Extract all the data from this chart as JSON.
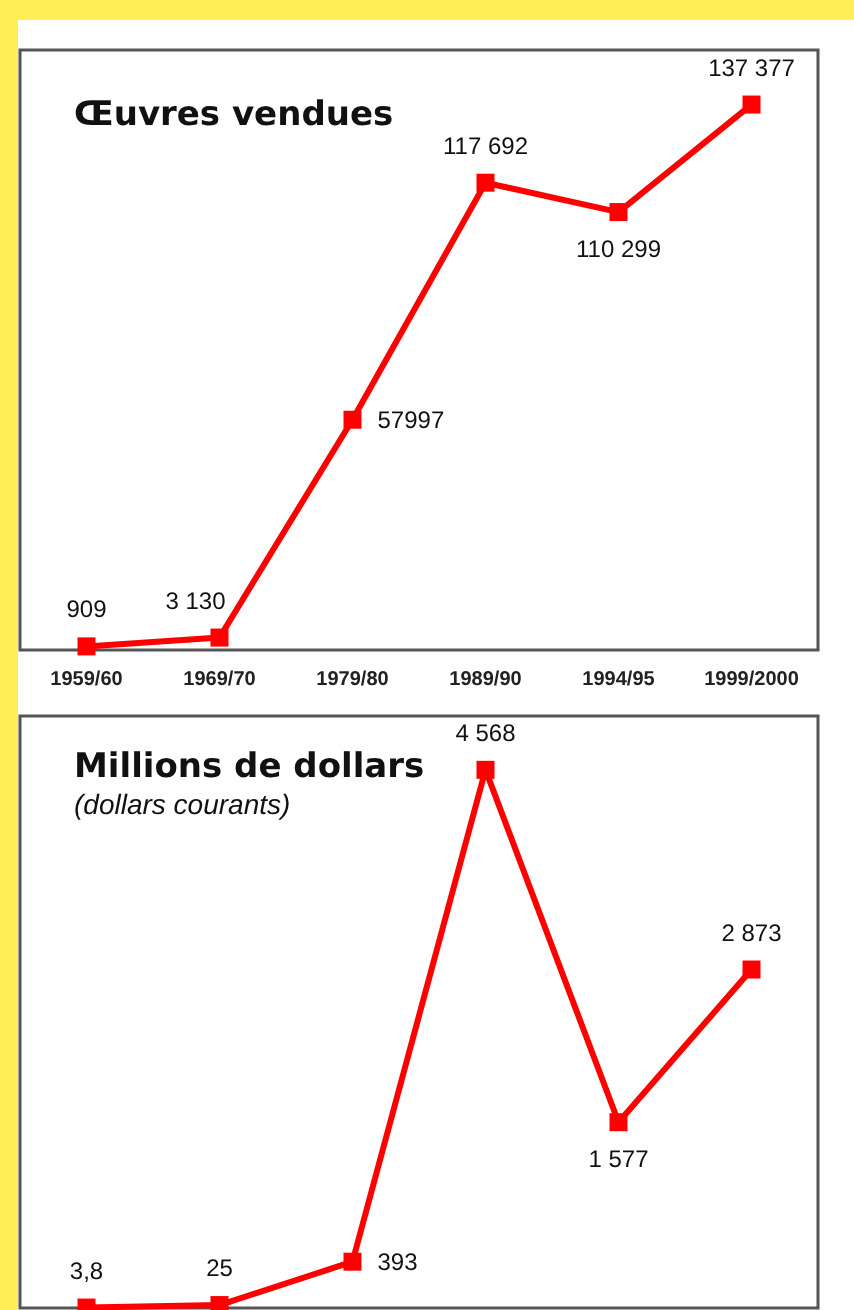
{
  "chart_data": [
    {
      "type": "line",
      "title": "Œuvres vendues",
      "categories": [
        "1959/60",
        "1969/70",
        "1979/80",
        "1989/90",
        "1994/95",
        "1999/2000"
      ],
      "series": [
        {
          "color": "#ff0000",
          "values": [
            909,
            3130,
            57997,
            117692,
            110299,
            137377
          ],
          "value_labels": [
            "909",
            "3 130",
            "57997",
            "117 692",
            "110 299",
            "137 377"
          ]
        }
      ],
      "marker": "square",
      "line_style": "solid",
      "tick_labels": "x",
      "grid": false
    },
    {
      "type": "line",
      "title": "Millions de dollars",
      "subtitle": "(dollars courants)",
      "categories": [
        null,
        null,
        null,
        null,
        null,
        null
      ],
      "series": [
        {
          "color": "#ff0000",
          "values": [
            3.8,
            25,
            393,
            4568,
            1577,
            2873
          ],
          "value_labels": [
            "3,8",
            "25",
            "393",
            "4 568",
            "1 577",
            "2 873"
          ]
        }
      ],
      "marker": "square",
      "line_style": "solid",
      "tick_labels": false,
      "grid": false
    }
  ]
}
